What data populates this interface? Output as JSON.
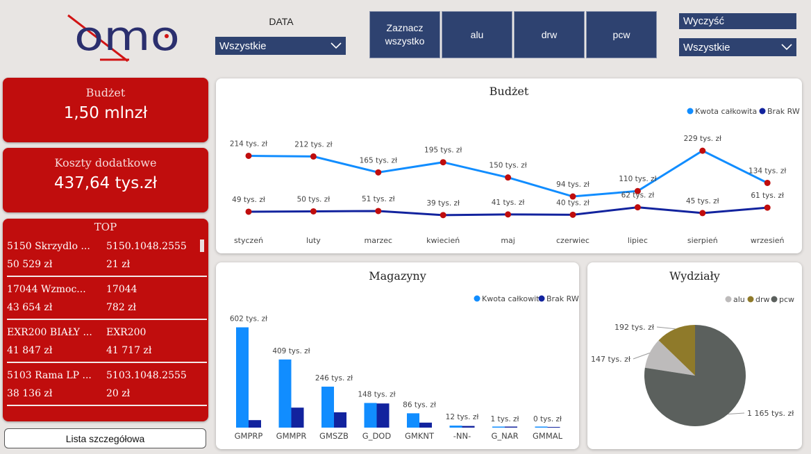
{
  "header": {
    "logo_text": "omo",
    "data_label": "DATA",
    "data_selected": "Wszystkie",
    "buttons": [
      "Zaznacz wszystko",
      "alu",
      "drw",
      "pcw"
    ],
    "clear_label": "Wyczyść",
    "right_selected": "Wszystkie"
  },
  "colors": {
    "accent_red": "#c00d0d",
    "navy": "#2e4270",
    "light_blue": "#118dff",
    "dark_blue": "#12239e",
    "point_red": "#c00d0d"
  },
  "kpis": [
    {
      "title": "Budżet",
      "value": "1,50 mlnzł"
    },
    {
      "title": "Koszty dodatkowe",
      "value": "437,64 tys.zł"
    }
  ],
  "top": {
    "title": "TOP",
    "rows": [
      {
        "name": "5150 Skrzydlo ...",
        "code": "5150.1048.2555",
        "amount": "50 529 zł",
        "qty": "21 zł"
      },
      {
        "name": "17044 Wzmoc...",
        "code": "17044",
        "amount": "43 654 zł",
        "qty": "782 zł"
      },
      {
        "name": "EXR200 BIAŁY ...",
        "code": "EXR200",
        "amount": "41 847 zł",
        "qty": "41 717 zł"
      },
      {
        "name": "5103 Rama LP ...",
        "code": "5103.1048.2555",
        "amount": "38 136 zł",
        "qty": "20 zł"
      }
    ]
  },
  "detail_button": "Lista szczegółowa",
  "chart_data": [
    {
      "type": "line",
      "title": "Budżet",
      "legend_position": "top-right",
      "categories": [
        "styczeń",
        "luty",
        "marzec",
        "kwiecień",
        "maj",
        "czerwiec",
        "lipiec",
        "sierpień",
        "wrzesień"
      ],
      "series": [
        {
          "name": "Kwota całkowita",
          "color": "#118dff",
          "values": [
            214,
            212,
            165,
            195,
            150,
            94,
            110,
            229,
            134
          ],
          "labels": [
            "214 tys. zł",
            "212 tys. zł",
            "165 tys. zł",
            "195 tys. zł",
            "150 tys. zł",
            "94 tys. zł",
            "110 tys. zł",
            "229 tys. zł",
            "134 tys. zł"
          ]
        },
        {
          "name": "Brak RW",
          "color": "#12239e",
          "values": [
            49,
            50,
            51,
            39,
            41,
            40,
            62,
            45,
            61
          ],
          "labels": [
            "49 tys. zł",
            "50 tys. zł",
            "51 tys. zł",
            "39 tys. zł",
            "41 tys. zł",
            "40 tys. zł",
            "62 tys. zł",
            "45 tys. zł",
            "61 tys. zł"
          ]
        }
      ],
      "grid": false
    },
    {
      "type": "bar",
      "title": "Magazyny",
      "legend_position": "top-right",
      "categories": [
        "GMPRP",
        "GMMPR",
        "GMSZB",
        "G_DOD",
        "GMKNT",
        "-NN-",
        "G_NAR",
        "GMMAL"
      ],
      "series": [
        {
          "name": "Kwota całkowita",
          "color": "#118dff",
          "values": [
            602,
            409,
            246,
            148,
            86,
            12,
            1,
            0
          ]
        },
        {
          "name": "Brak RW",
          "color": "#12239e",
          "values": [
            45,
            120,
            92,
            145,
            30,
            10,
            0.5,
            0
          ]
        }
      ],
      "labels": [
        "602 tys. zł",
        "409 tys. zł",
        "246 tys. zł",
        "148 tys. zł",
        "86 tys. zł",
        "12 tys. zł",
        "1 tys. zł",
        "0 tys. zł"
      ],
      "grid": false
    },
    {
      "type": "pie",
      "title": "Wydziały",
      "legend_position": "top-right",
      "slices": [
        {
          "name": "alu",
          "value": 147,
          "label": "147 tys. zł",
          "color": "#bdbbbb"
        },
        {
          "name": "drw",
          "value": 192,
          "label": "192 tys. zł",
          "color": "#8f7a2a"
        },
        {
          "name": "pcw",
          "value": 1165,
          "label": "1 165 tys. zł",
          "color": "#5b605d"
        }
      ]
    }
  ]
}
